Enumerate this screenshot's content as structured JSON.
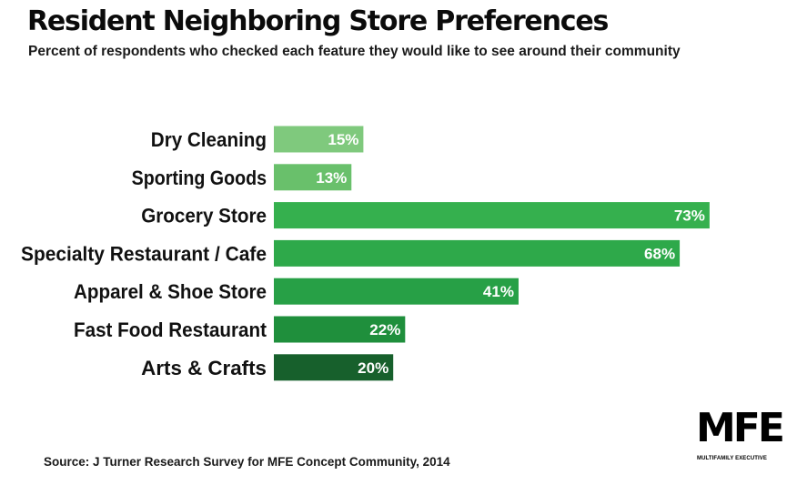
{
  "chart_data": {
    "type": "bar",
    "orientation": "horizontal",
    "title": "Resident Neighboring Store Preferences",
    "subtitle": "Percent of respondents who checked each feature they would like to see around their community",
    "categories": [
      "Dry Cleaning",
      "Sporting Goods",
      "Grocery Store",
      "Specialty Restaurant / Cafe",
      "Apparel & Shoe Store",
      "Fast Food Restaurant",
      "Arts & Crafts"
    ],
    "values": [
      15,
      13,
      73,
      68,
      41,
      22,
      20
    ],
    "data_labels": [
      "15%",
      "13%",
      "73%",
      "68%",
      "41%",
      "22%",
      "20%"
    ],
    "bar_colors": [
      "#7fc97d",
      "#69c06b",
      "#35b04e",
      "#2ea94a",
      "#27a046",
      "#1f8f3c",
      "#17602c"
    ],
    "unit": "%",
    "xlim": [
      0,
      100
    ],
    "grid": false,
    "legend": "none"
  },
  "footer": {
    "source": "Source: J Turner Research Survey for MFE Concept Community, 2014"
  },
  "logo": {
    "mark": "MFE",
    "text": "MULTIFAMILY EXECUTIVE"
  }
}
